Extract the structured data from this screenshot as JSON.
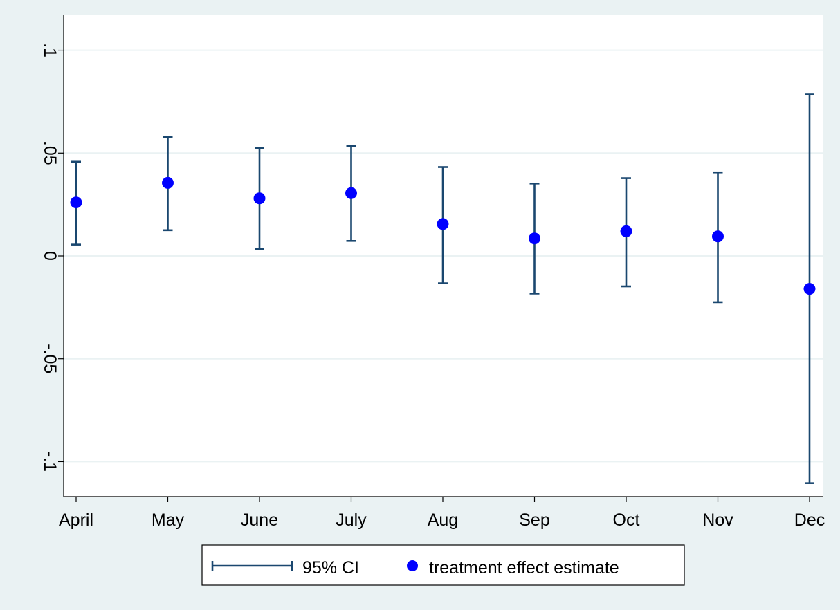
{
  "chart_data": {
    "type": "scatter",
    "categories": [
      "April",
      "May",
      "June",
      "July",
      "Aug",
      "Sep",
      "Oct",
      "Nov",
      "Dec"
    ],
    "series": [
      {
        "name": "treatment effect estimate",
        "values": [
          0.026,
          0.0355,
          0.028,
          0.0305,
          0.0155,
          0.0085,
          0.012,
          0.0095,
          -0.016
        ]
      },
      {
        "name": "95% CI",
        "lower": [
          0.0055,
          0.0125,
          0.0033,
          0.0073,
          -0.0133,
          -0.0183,
          -0.0148,
          -0.0225,
          -0.1105
        ],
        "upper": [
          0.0458,
          0.0578,
          0.0525,
          0.0535,
          0.0432,
          0.0352,
          0.0378,
          0.0406,
          0.0785
        ]
      }
    ],
    "xlabel": "",
    "ylabel": "",
    "ylim": [
      -0.117,
      0.117
    ],
    "yticks": [
      -0.1,
      -0.05,
      0,
      0.05,
      0.1
    ],
    "ytick_labels": [
      "-.1",
      "-.05",
      "0",
      ".05",
      ".1"
    ],
    "grid": true,
    "legend_position": "bottom",
    "colors": {
      "outer_background": "#eaf2f3",
      "plot_background": "#ffffff",
      "grid": "#eaf2f3",
      "ci": "#1a476f",
      "point": "#0000ff"
    },
    "legend": {
      "ci_label": "95% CI",
      "point_label": "treatment effect estimate"
    }
  }
}
